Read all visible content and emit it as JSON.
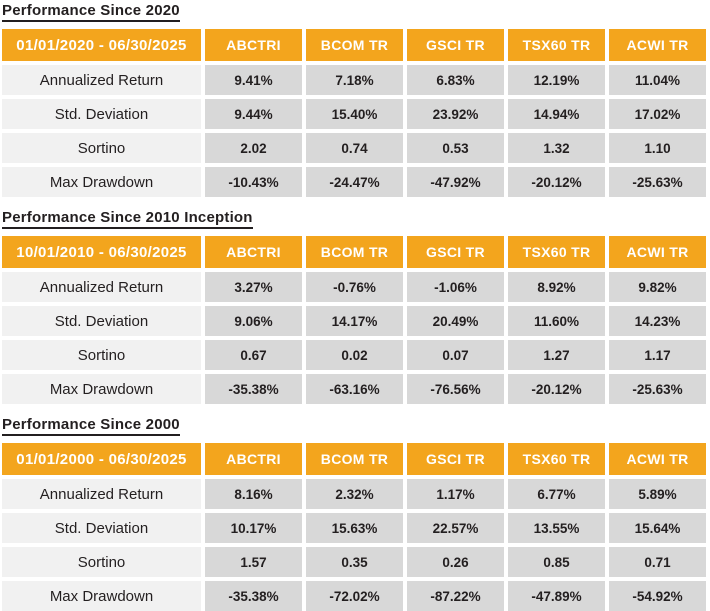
{
  "theme": {
    "accent_color": "#F3A51D",
    "label_cell_color": "#F1F1F1",
    "value_cell_color": "#D8D8D8",
    "text_color": "#231F20",
    "header_text_color": "#FFFFFF"
  },
  "tables": [
    {
      "title": "Performance Since 2020",
      "period": "01/01/2020 - 06/30/2025",
      "columns": [
        "ABCTRI",
        "BCOM TR",
        "GSCI TR",
        "TSX60 TR",
        "ACWI TR"
      ],
      "rows": [
        {
          "label": "Annualized Return",
          "values": [
            "9.41%",
            "7.18%",
            "6.83%",
            "12.19%",
            "11.04%"
          ]
        },
        {
          "label": "Std. Deviation",
          "values": [
            "9.44%",
            "15.40%",
            "23.92%",
            "14.94%",
            "17.02%"
          ]
        },
        {
          "label": "Sortino",
          "values": [
            "2.02",
            "0.74",
            "0.53",
            "1.32",
            "1.10"
          ]
        },
        {
          "label": "Max Drawdown",
          "values": [
            "-10.43%",
            "-24.47%",
            "-47.92%",
            "-20.12%",
            "-25.63%"
          ]
        }
      ]
    },
    {
      "title": "Performance Since 2010 Inception",
      "period": "10/01/2010 - 06/30/2025",
      "columns": [
        "ABCTRI",
        "BCOM TR",
        "GSCI TR",
        "TSX60 TR",
        "ACWI TR"
      ],
      "rows": [
        {
          "label": "Annualized Return",
          "values": [
            "3.27%",
            "-0.76%",
            "-1.06%",
            "8.92%",
            "9.82%"
          ]
        },
        {
          "label": "Std. Deviation",
          "values": [
            "9.06%",
            "14.17%",
            "20.49%",
            "11.60%",
            "14.23%"
          ]
        },
        {
          "label": "Sortino",
          "values": [
            "0.67",
            "0.02",
            "0.07",
            "1.27",
            "1.17"
          ]
        },
        {
          "label": "Max Drawdown",
          "values": [
            "-35.38%",
            "-63.16%",
            "-76.56%",
            "-20.12%",
            "-25.63%"
          ]
        }
      ]
    },
    {
      "title": "Performance Since 2000",
      "period": "01/01/2000 - 06/30/2025",
      "columns": [
        "ABCTRI",
        "BCOM TR",
        "GSCI TR",
        "TSX60 TR",
        "ACWI TR"
      ],
      "rows": [
        {
          "label": "Annualized Return",
          "values": [
            "8.16%",
            "2.32%",
            "1.17%",
            "6.77%",
            "5.89%"
          ]
        },
        {
          "label": "Std. Deviation",
          "values": [
            "10.17%",
            "15.63%",
            "22.57%",
            "13.55%",
            "15.64%"
          ]
        },
        {
          "label": "Sortino",
          "values": [
            "1.57",
            "0.35",
            "0.26",
            "0.85",
            "0.71"
          ]
        },
        {
          "label": "Max Drawdown",
          "values": [
            "-35.38%",
            "-72.02%",
            "-87.22%",
            "-47.89%",
            "-54.92%"
          ]
        }
      ]
    }
  ]
}
